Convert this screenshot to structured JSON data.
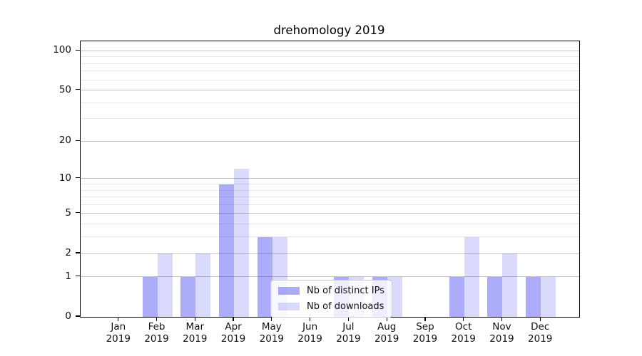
{
  "chart_data": {
    "type": "bar",
    "title": "drehomology 2019",
    "categories": [
      "Jan",
      "Feb",
      "Mar",
      "Apr",
      "May",
      "Jun",
      "Jul",
      "Aug",
      "Sep",
      "Oct",
      "Nov",
      "Dec"
    ],
    "x_year_label": "2019",
    "series": [
      {
        "name": "Nb of distinct IPs",
        "color": "rgba(57,57,245,0.42)",
        "values": [
          0,
          1,
          1,
          9,
          3,
          0,
          1,
          1,
          0,
          1,
          1,
          1
        ]
      },
      {
        "name": "Nb of downloads",
        "color": "rgba(57,57,245,0.19)",
        "values": [
          0,
          2,
          2,
          12,
          3,
          0,
          1,
          1,
          0,
          3,
          2,
          1
        ]
      }
    ],
    "yscale": "log1p",
    "ylim": [
      0,
      118
    ],
    "yticks": [
      0,
      1,
      2,
      5,
      10,
      20,
      50,
      100
    ],
    "yticks_minor": [
      3,
      4,
      6,
      7,
      8,
      9,
      30,
      40,
      60,
      70,
      80,
      90
    ],
    "grid": true,
    "legend_position": "lower-center"
  }
}
